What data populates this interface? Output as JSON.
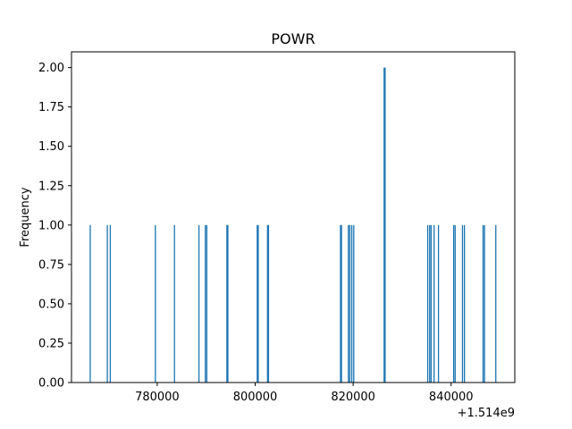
{
  "chart_data": {
    "type": "bar",
    "title": "POWR",
    "xlabel": "",
    "ylabel": "Frequency",
    "x_offset_label": "+1.514e9",
    "xlim": [
      762500,
      853000
    ],
    "ylim": [
      0,
      2.1
    ],
    "x_ticks": [
      780000,
      800000,
      820000,
      840000
    ],
    "x_tick_labels": [
      "780000",
      "800000",
      "820000",
      "840000"
    ],
    "y_ticks": [
      0,
      0.25,
      0.5,
      0.75,
      1.0,
      1.25,
      1.5,
      1.75,
      2.0
    ],
    "y_tick_labels": [
      "0.00",
      "0.25",
      "0.50",
      "0.75",
      "1.00",
      "1.25",
      "1.50",
      "1.75",
      "2.00"
    ],
    "bar_color": "#1f77b4",
    "bin_width": 240,
    "bars": [
      {
        "x": 766200,
        "count": 1
      },
      {
        "x": 769700,
        "count": 1
      },
      {
        "x": 770300,
        "count": 1
      },
      {
        "x": 779500,
        "count": 1
      },
      {
        "x": 783400,
        "count": 1
      },
      {
        "x": 788400,
        "count": 1
      },
      {
        "x": 789700,
        "count": 1
      },
      {
        "x": 790000,
        "count": 1
      },
      {
        "x": 794100,
        "count": 1
      },
      {
        "x": 794300,
        "count": 1
      },
      {
        "x": 800300,
        "count": 1
      },
      {
        "x": 800500,
        "count": 1
      },
      {
        "x": 802400,
        "count": 1
      },
      {
        "x": 802600,
        "count": 1
      },
      {
        "x": 817300,
        "count": 1
      },
      {
        "x": 817500,
        "count": 1
      },
      {
        "x": 818900,
        "count": 1
      },
      {
        "x": 819200,
        "count": 1
      },
      {
        "x": 819600,
        "count": 1
      },
      {
        "x": 820000,
        "count": 1
      },
      {
        "x": 826200,
        "count": 2
      },
      {
        "x": 826400,
        "count": 2
      },
      {
        "x": 835100,
        "count": 1
      },
      {
        "x": 835500,
        "count": 1
      },
      {
        "x": 835800,
        "count": 1
      },
      {
        "x": 836400,
        "count": 1
      },
      {
        "x": 837300,
        "count": 1
      },
      {
        "x": 840400,
        "count": 1
      },
      {
        "x": 840700,
        "count": 1
      },
      {
        "x": 842200,
        "count": 1
      },
      {
        "x": 842600,
        "count": 1
      },
      {
        "x": 846400,
        "count": 1
      },
      {
        "x": 846700,
        "count": 1
      },
      {
        "x": 849000,
        "count": 1
      }
    ]
  }
}
